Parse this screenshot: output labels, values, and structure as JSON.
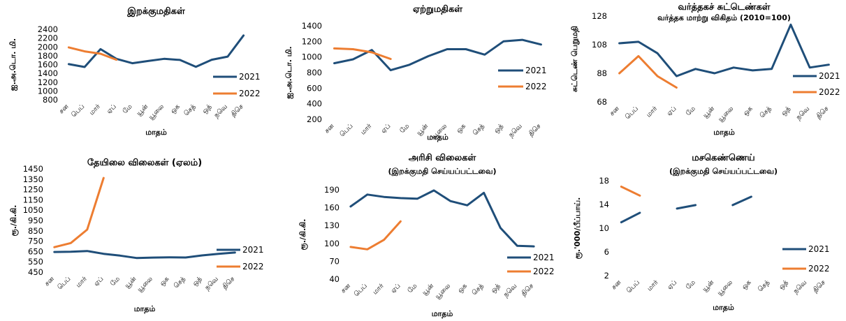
{
  "colors": {
    "series_2021": "#1f4e79",
    "series_2022": "#ed7d31"
  },
  "months": [
    "சன",
    "பெப்",
    "மார்",
    "ஏப்",
    "மே",
    "யூன்",
    "யூலை",
    "ஒக",
    "செத்",
    "ஒத்",
    "நவெ",
    "திசெ"
  ],
  "chart_data": [
    {
      "type": "line",
      "title": "இறக்குமதிகள்",
      "subtitle": "",
      "xlabel": "மாதம்",
      "ylabel": "ஐ.அ.டொ. மி.",
      "ylim": [
        800,
        2400
      ],
      "yticks": [
        800,
        1000,
        1200,
        1400,
        1600,
        1800,
        2000,
        2200,
        2400
      ],
      "legend": "right",
      "series": [
        {
          "name": "2021",
          "values": [
            1610,
            1545,
            1950,
            1730,
            1630,
            1680,
            1730,
            1705,
            1550,
            1710,
            1780,
            2260
          ]
        },
        {
          "name": "2022",
          "values": [
            1990,
            1900,
            1845,
            1710
          ]
        }
      ]
    },
    {
      "type": "line",
      "title": "ஏற்றுமதிகள்",
      "subtitle": "",
      "xlabel": "மாதம்",
      "ylabel": "ஐ.அ.டொ. மி.",
      "ylim": [
        200,
        1400
      ],
      "yticks": [
        200,
        400,
        600,
        800,
        1000,
        1200,
        1400
      ],
      "legend": "right",
      "series": [
        {
          "name": "2021",
          "values": [
            920,
            970,
            1090,
            830,
            900,
            1010,
            1100,
            1100,
            1030,
            1200,
            1220,
            1160
          ]
        },
        {
          "name": "2022",
          "values": [
            1110,
            1100,
            1060,
            975
          ]
        }
      ]
    },
    {
      "type": "line",
      "title": "வர்த்தகச் சுட்டெண்கள்",
      "subtitle": "வர்த்தக மாற்று விகிதம் (2010=100)",
      "xlabel": "மாதம்",
      "ylabel": "சுட்டெண் பெறுமதி",
      "ylim": [
        68,
        128
      ],
      "yticks": [
        68,
        88,
        108,
        128
      ],
      "legend": "right",
      "series": [
        {
          "name": "2021",
          "values": [
            109,
            110,
            102,
            86,
            91,
            88,
            92,
            90,
            91,
            122,
            92,
            94
          ]
        },
        {
          "name": "2022",
          "values": [
            88,
            100,
            86,
            78
          ]
        }
      ]
    },
    {
      "type": "line",
      "title": "தேயிலை விலைகள் (ஏலம்)",
      "subtitle": "",
      "xlabel": "மாதம்",
      "ylabel": "ரூ./கி.கி.",
      "ylim": [
        450,
        1450
      ],
      "yticks": [
        450,
        550,
        650,
        750,
        850,
        950,
        1050,
        1150,
        1250,
        1350,
        1450
      ],
      "legend": "right",
      "series": [
        {
          "name": "2021",
          "values": [
            645,
            648,
            655,
            628,
            610,
            587,
            591,
            593,
            592,
            612,
            628,
            640
          ]
        },
        {
          "name": "2022",
          "values": [
            692,
            732,
            862,
            1362
          ]
        }
      ]
    },
    {
      "type": "line",
      "title": "அரிசி விலைகள்",
      "subtitle": "(இறக்குமதி செய்யப்பட்டவை)",
      "xlabel": "மாதம்",
      "ylabel": "ரூ./கி.கி.",
      "ylim": [
        40,
        190
      ],
      "yticks": [
        40,
        70,
        100,
        130,
        160,
        190
      ],
      "legend": "right",
      "series": [
        {
          "name": "2021",
          "values": [
            162,
            182,
            178,
            176,
            175,
            189,
            171,
            164,
            185,
            126,
            96,
            95
          ]
        },
        {
          "name": "2022",
          "values": [
            94,
            90,
            106,
            137
          ]
        }
      ]
    },
    {
      "type": "line",
      "title": "மசகெண்ணெய்",
      "subtitle": "(இறக்குமதி செய்யப்பட்டவை)",
      "xlabel": "மாதம்",
      "ylabel": "ரூ.'000/பீப்பாய்.",
      "ylim": [
        2,
        18
      ],
      "yticks": [
        2,
        6,
        10,
        14,
        18
      ],
      "legend": "right",
      "series": [
        {
          "name": "2021",
          "values": [
            11.0,
            12.6,
            null,
            13.3,
            13.9,
            null,
            13.9,
            15.3
          ]
        },
        {
          "name": "2022",
          "values": [
            17.0,
            15.5
          ]
        }
      ]
    }
  ]
}
